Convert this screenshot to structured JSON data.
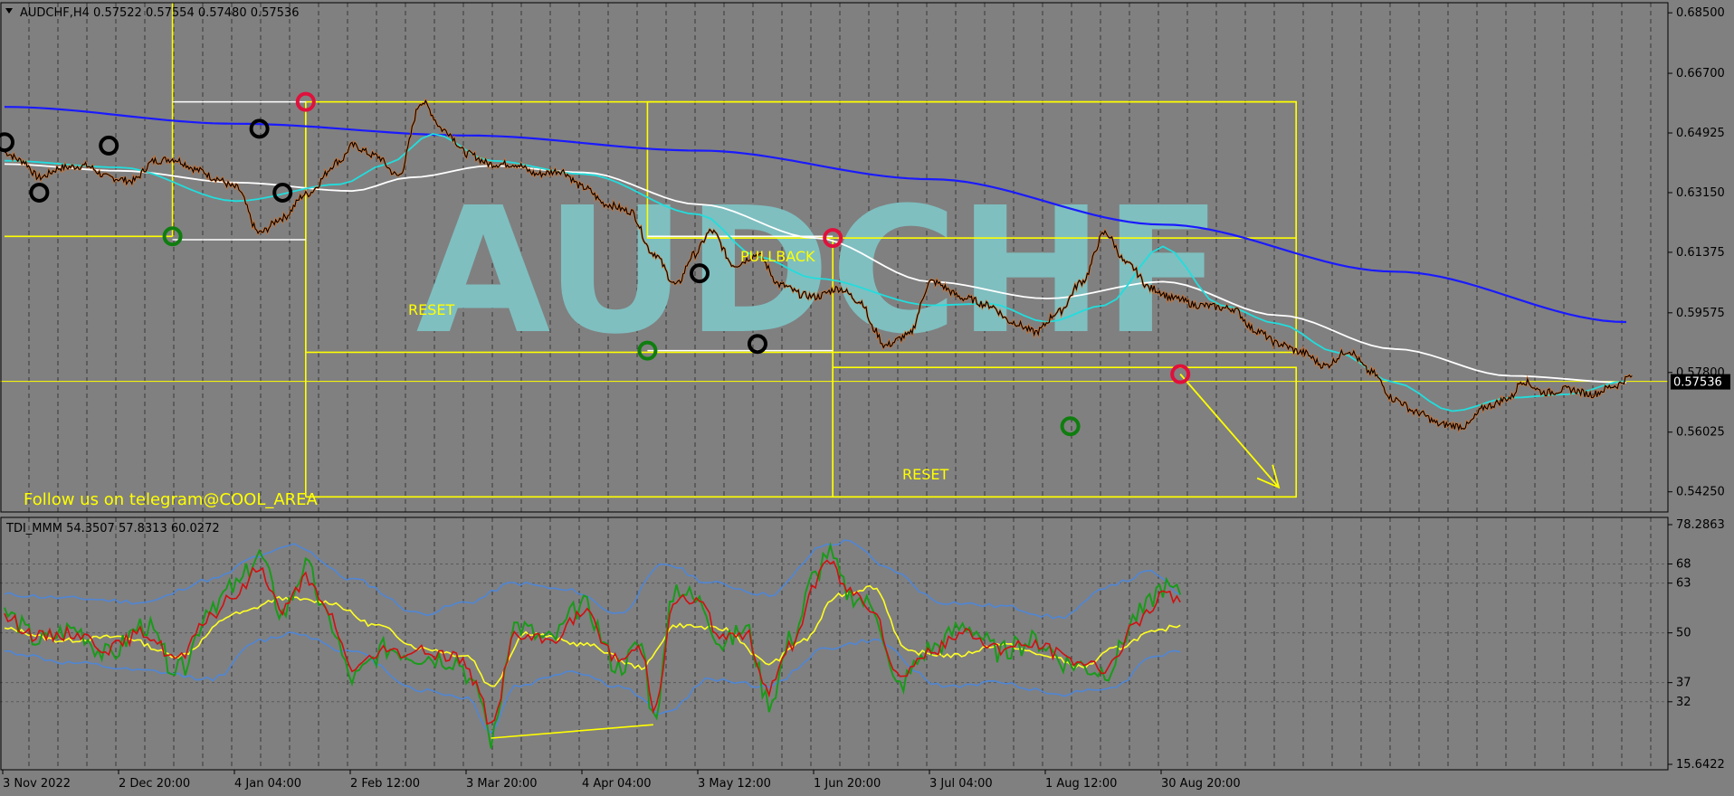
{
  "colors": {
    "background": "#808080",
    "frame": "#000000",
    "annotation": "#ffff00",
    "watermark": "#7fbfc0",
    "ma_slow": "#1a1aff",
    "ma_mid": "#ffffff",
    "ma_fast": "#22dddd",
    "price": "#000000",
    "swing_high": "#e0103c",
    "swing_low": "#0f7d0f",
    "swing_mid": "#000000",
    "tdi_green": "#1a9a1a",
    "tdi_red": "#d01010",
    "tdi_yellow": "#ffff22",
    "tdi_blue": "#4f86d6"
  },
  "header": {
    "symbol_menu_icon": "triangle-down-icon",
    "price_info": "AUDCHF,H4  0.57522 0.57554 0.57480 0.57536"
  },
  "watermark": "AUDCHF",
  "promo": "Follow us on telegram@COOL_AREA",
  "labels": {
    "reset_1": "RESET",
    "pullback": "PULLBACK",
    "reset_2": "RESET"
  },
  "chart_data": [
    {
      "type": "line",
      "panel": "price",
      "symbol": "AUDCHF",
      "timeframe": "H4",
      "quote": {
        "open": 0.57522,
        "high": 0.57554,
        "low": 0.5748,
        "close": 0.57536
      },
      "current_price_label": "0.57536",
      "ylim": [
        0.5365,
        0.688
      ],
      "y_ticks": [
        {
          "value": 0.685,
          "label": "0.68500"
        },
        {
          "value": 0.667,
          "label": "0.66700"
        },
        {
          "value": 0.64925,
          "label": "0.64925"
        },
        {
          "value": 0.6315,
          "label": "0.63150"
        },
        {
          "value": 0.61375,
          "label": "0.61375"
        },
        {
          "value": 0.59575,
          "label": "0.59575"
        },
        {
          "value": 0.578,
          "label": "0.57800"
        },
        {
          "value": 0.56025,
          "label": "0.56025"
        },
        {
          "value": 0.5425,
          "label": "0.54250"
        }
      ],
      "x_ticks": [
        "3 Nov 2022",
        "2 Dec 20:00",
        "4 Jan 04:00",
        "2 Feb 12:00",
        "3 Mar 20:00",
        "4 Apr 04:00",
        "3 May 12:00",
        "1 Jun 20:00",
        "3 Jul 04:00",
        "1 Aug 12:00",
        "30 Aug 20:00"
      ],
      "x_range_index": [
        0,
        14.4
      ],
      "grid": "vertical-dashed",
      "price_series": {
        "x": [
          0,
          0.15,
          0.3,
          0.5,
          0.7,
          0.9,
          1.1,
          1.3,
          1.45,
          1.7,
          1.8,
          2.0,
          2.2,
          2.4,
          2.6,
          2.9,
          3.0,
          3.2,
          3.4,
          3.6,
          3.8,
          4.0,
          4.2,
          4.4,
          4.6,
          4.8,
          5.0,
          5.2,
          5.4,
          5.6,
          5.8,
          5.95,
          6.1,
          6.3,
          6.5,
          6.7,
          6.9,
          7.0,
          7.2,
          7.4,
          7.5,
          7.6,
          7.8,
          8.0,
          8.3,
          8.5,
          8.7,
          8.9,
          9.1,
          9.3,
          9.5,
          9.7,
          9.9,
          10.1,
          10.3,
          10.6,
          10.8,
          11.0,
          11.2,
          11.4,
          11.6,
          11.8,
          12.0,
          12.2,
          12.4,
          12.6,
          12.8,
          13.0,
          13.1,
          13.3,
          13.5,
          13.7,
          13.9,
          14.05
        ],
        "y": [
          0.6435,
          0.641,
          0.636,
          0.639,
          0.6395,
          0.636,
          0.635,
          0.641,
          0.6415,
          0.638,
          0.636,
          0.633,
          0.6195,
          0.624,
          0.631,
          0.641,
          0.6455,
          0.6425,
          0.6365,
          0.6585,
          0.65,
          0.643,
          0.64,
          0.64,
          0.637,
          0.638,
          0.633,
          0.628,
          0.626,
          0.6135,
          0.604,
          0.613,
          0.62,
          0.61,
          0.613,
          0.604,
          0.601,
          0.6005,
          0.603,
          0.599,
          0.591,
          0.586,
          0.589,
          0.605,
          0.6,
          0.598,
          0.593,
          0.59,
          0.596,
          0.605,
          0.6195,
          0.61,
          0.603,
          0.6,
          0.598,
          0.597,
          0.5905,
          0.5865,
          0.584,
          0.58,
          0.5845,
          0.578,
          0.57,
          0.566,
          0.5625,
          0.562,
          0.568,
          0.5705,
          0.5755,
          0.572,
          0.573,
          0.5715,
          0.574,
          0.577
        ]
      },
      "moving_averages": [
        {
          "role": "slow",
          "x": [
            0,
            2,
            4,
            6,
            8,
            10,
            12,
            14
          ],
          "y": [
            0.657,
            0.652,
            0.6485,
            0.644,
            0.6355,
            0.622,
            0.608,
            0.593
          ]
        },
        {
          "role": "mid",
          "x": [
            0,
            1,
            2,
            3,
            3.5,
            4.2,
            5,
            6,
            7,
            8,
            9,
            10,
            11,
            12,
            13,
            14
          ],
          "y": [
            0.64,
            0.638,
            0.6345,
            0.632,
            0.636,
            0.6395,
            0.6375,
            0.628,
            0.618,
            0.605,
            0.6,
            0.605,
            0.595,
            0.585,
            0.577,
            0.575
          ]
        },
        {
          "role": "fast",
          "x": [
            0,
            1,
            2,
            2.9,
            3.3,
            3.7,
            4.2,
            5,
            6,
            6.5,
            7,
            8,
            8.5,
            9,
            9.5,
            10,
            10.5,
            11,
            11.5,
            12,
            12.5,
            13,
            13.5,
            14
          ],
          "y": [
            0.641,
            0.639,
            0.629,
            0.634,
            0.64,
            0.649,
            0.641,
            0.637,
            0.625,
            0.6125,
            0.606,
            0.598,
            0.5985,
            0.593,
            0.598,
            0.6155,
            0.598,
            0.5925,
            0.584,
            0.575,
            0.5665,
            0.5705,
            0.5715,
            0.5755
          ]
        }
      ],
      "swing_markers": [
        {
          "x": 0.0,
          "y": 0.6465,
          "kind": "mid"
        },
        {
          "x": 0.3,
          "y": 0.6315,
          "kind": "mid"
        },
        {
          "x": 0.9,
          "y": 0.6455,
          "kind": "mid"
        },
        {
          "x": 1.45,
          "y": 0.6185,
          "kind": "low"
        },
        {
          "x": 2.2,
          "y": 0.6505,
          "kind": "mid"
        },
        {
          "x": 2.4,
          "y": 0.6315,
          "kind": "mid"
        },
        {
          "x": 2.6,
          "y": 0.6585,
          "kind": "high"
        },
        {
          "x": 5.55,
          "y": 0.5845,
          "kind": "low"
        },
        {
          "x": 6.0,
          "y": 0.6075,
          "kind": "mid"
        },
        {
          "x": 6.5,
          "y": 0.5865,
          "kind": "mid"
        },
        {
          "x": 7.15,
          "y": 0.618,
          "kind": "high"
        },
        {
          "x": 9.2,
          "y": 0.562,
          "kind": "low"
        },
        {
          "x": 10.15,
          "y": 0.5775,
          "kind": "high"
        }
      ],
      "annotations": {
        "vertical_lines": [
          {
            "x": 1.45,
            "from": 0.688,
            "to": 0.6185
          },
          {
            "x": 2.6,
            "from": 0.6585,
            "to": 0.541
          },
          {
            "x": 7.15,
            "from": 0.6175,
            "to": 0.541
          }
        ],
        "white_levels": [
          {
            "x1": 1.45,
            "x2": 2.6,
            "y": 0.6585
          },
          {
            "x1": 1.45,
            "x2": 2.6,
            "y": 0.6175
          },
          {
            "x1": 5.55,
            "x2": 7.15,
            "y": 0.6185
          },
          {
            "x1": 5.55,
            "x2": 7.15,
            "y": 0.5845
          }
        ],
        "yellow_boxes": [
          {
            "x1": 0.0,
            "x2": 1.45,
            "y1": 0.6185,
            "y2": 0.6185
          },
          {
            "x1": 2.6,
            "x2": 11.15,
            "y1": 0.6585,
            "y2": 0.584
          },
          {
            "x1": 5.55,
            "x2": 11.15,
            "y1": 0.6585,
            "y2": 0.618
          },
          {
            "x1": 7.15,
            "x2": 11.15,
            "y1": 0.5795,
            "y2": 0.541
          },
          {
            "x1": 2.6,
            "x2": 11.15,
            "y1": 0.541,
            "y2": 0.541
          }
        ],
        "current_price_line": 0.57536,
        "arrow": {
          "x1": 10.15,
          "y1": 0.5775,
          "x2": 11.0,
          "y2": 0.5438
        }
      }
    },
    {
      "type": "line",
      "panel": "indicator",
      "name": "TDI_MMM",
      "values_label": "TDI_MMM 54.3507 57.8313 60.0272",
      "ylim": [
        15.6422,
        78.2863
      ],
      "y_ticks": [
        {
          "value": 78.2863,
          "label": "78.2863"
        },
        {
          "value": 68,
          "label": "68"
        },
        {
          "value": 63,
          "label": "63"
        },
        {
          "value": 50,
          "label": "50"
        },
        {
          "value": 37,
          "label": "37"
        },
        {
          "value": 32,
          "label": "32"
        },
        {
          "value": 15.6422,
          "label": "15.6422"
        }
      ],
      "dotted_levels": [
        68,
        63,
        50,
        37,
        32
      ],
      "series": [
        {
          "role": "rsi_price_line",
          "x": [
            0,
            0.3,
            0.6,
            0.9,
            1.2,
            1.5,
            1.8,
            2.0,
            2.2,
            2.4,
            2.6,
            2.8,
            3.0,
            3.3,
            3.6,
            3.9,
            4.1,
            4.2,
            4.4,
            4.7,
            5.0,
            5.3,
            5.5,
            5.6,
            5.8,
            6.0,
            6.2,
            6.4,
            6.6,
            6.8,
            7.0,
            7.1,
            7.3,
            7.5,
            7.7,
            8.0,
            8.3,
            8.6,
            8.9,
            9.2,
            9.5,
            9.8,
            10.0,
            10.15
          ],
          "y": [
            55,
            48,
            51,
            44,
            52,
            40,
            58,
            62,
            70,
            55,
            67,
            53,
            38,
            46,
            44,
            43,
            34,
            22,
            52,
            48,
            57,
            41,
            47,
            28,
            62,
            58,
            47,
            51,
            32,
            49,
            65,
            71,
            60,
            57,
            36,
            46,
            52,
            45,
            48,
            42,
            40,
            55,
            62,
            60
          ]
        },
        {
          "role": "signal_line",
          "x": [
            0,
            0.3,
            0.6,
            0.9,
            1.2,
            1.5,
            1.8,
            2.0,
            2.2,
            2.4,
            2.6,
            2.8,
            3.0,
            3.3,
            3.6,
            3.9,
            4.1,
            4.2,
            4.4,
            4.7,
            5.0,
            5.3,
            5.5,
            5.6,
            5.8,
            6.0,
            6.2,
            6.4,
            6.6,
            6.8,
            7.0,
            7.1,
            7.3,
            7.5,
            7.7,
            8.0,
            8.3,
            8.6,
            8.9,
            9.2,
            9.5,
            9.8,
            10.0,
            10.15
          ],
          "y": [
            54,
            49,
            50,
            46,
            50,
            43,
            55,
            60,
            67,
            56,
            64,
            55,
            41,
            45,
            45,
            44,
            36,
            25,
            49,
            48,
            55,
            43,
            46,
            31,
            59,
            58,
            48,
            50,
            35,
            47,
            63,
            69,
            61,
            57,
            39,
            45,
            50,
            46,
            47,
            43,
            41,
            53,
            60,
            58
          ]
        },
        {
          "role": "market_base_line",
          "x": [
            0,
            0.5,
            1,
            1.5,
            2,
            2.4,
            2.8,
            3.2,
            3.6,
            4.0,
            4.2,
            4.5,
            5.0,
            5.5,
            5.8,
            6.2,
            6.6,
            6.9,
            7.2,
            7.5,
            7.8,
            8.2,
            8.6,
            9.0,
            9.3,
            9.6,
            9.9,
            10.15
          ],
          "y": [
            51,
            48,
            49,
            44,
            55,
            59,
            58,
            52,
            46,
            44,
            36,
            50,
            47,
            41,
            52,
            51,
            42,
            48,
            60,
            62,
            45,
            44,
            47,
            44,
            41,
            46,
            50,
            52
          ]
        },
        {
          "role": "volatility_band_upper",
          "x": [
            0,
            0.6,
            1.2,
            1.8,
            2.2,
            2.5,
            3.0,
            3.6,
            4.0,
            4.4,
            4.9,
            5.3,
            5.7,
            6.1,
            6.6,
            7.1,
            7.3,
            7.6,
            8.1,
            8.6,
            9.1,
            9.6,
            9.9,
            10.15
          ],
          "y": [
            60,
            59,
            58,
            64,
            70,
            73,
            64,
            55,
            58,
            63,
            61,
            55,
            68,
            63,
            60,
            73,
            74,
            67,
            58,
            57,
            54,
            63,
            66,
            60
          ]
        },
        {
          "role": "volatility_band_lower",
          "x": [
            0,
            0.6,
            1.2,
            1.8,
            2.2,
            2.5,
            3.0,
            3.6,
            4.0,
            4.2,
            4.4,
            4.9,
            5.3,
            5.7,
            6.1,
            6.6,
            7.1,
            7.5,
            8.1,
            8.6,
            9.1,
            9.6,
            9.9,
            10.15
          ],
          "y": [
            45,
            42,
            40,
            38,
            48,
            50,
            45,
            35,
            33,
            24,
            36,
            40,
            36,
            29,
            38,
            36,
            46,
            48,
            36,
            37,
            34,
            36,
            44,
            45
          ]
        }
      ],
      "divergence_line": {
        "x1": 4.2,
        "y1": 22.5,
        "x2": 5.6,
        "y2": 26.0
      }
    }
  ]
}
